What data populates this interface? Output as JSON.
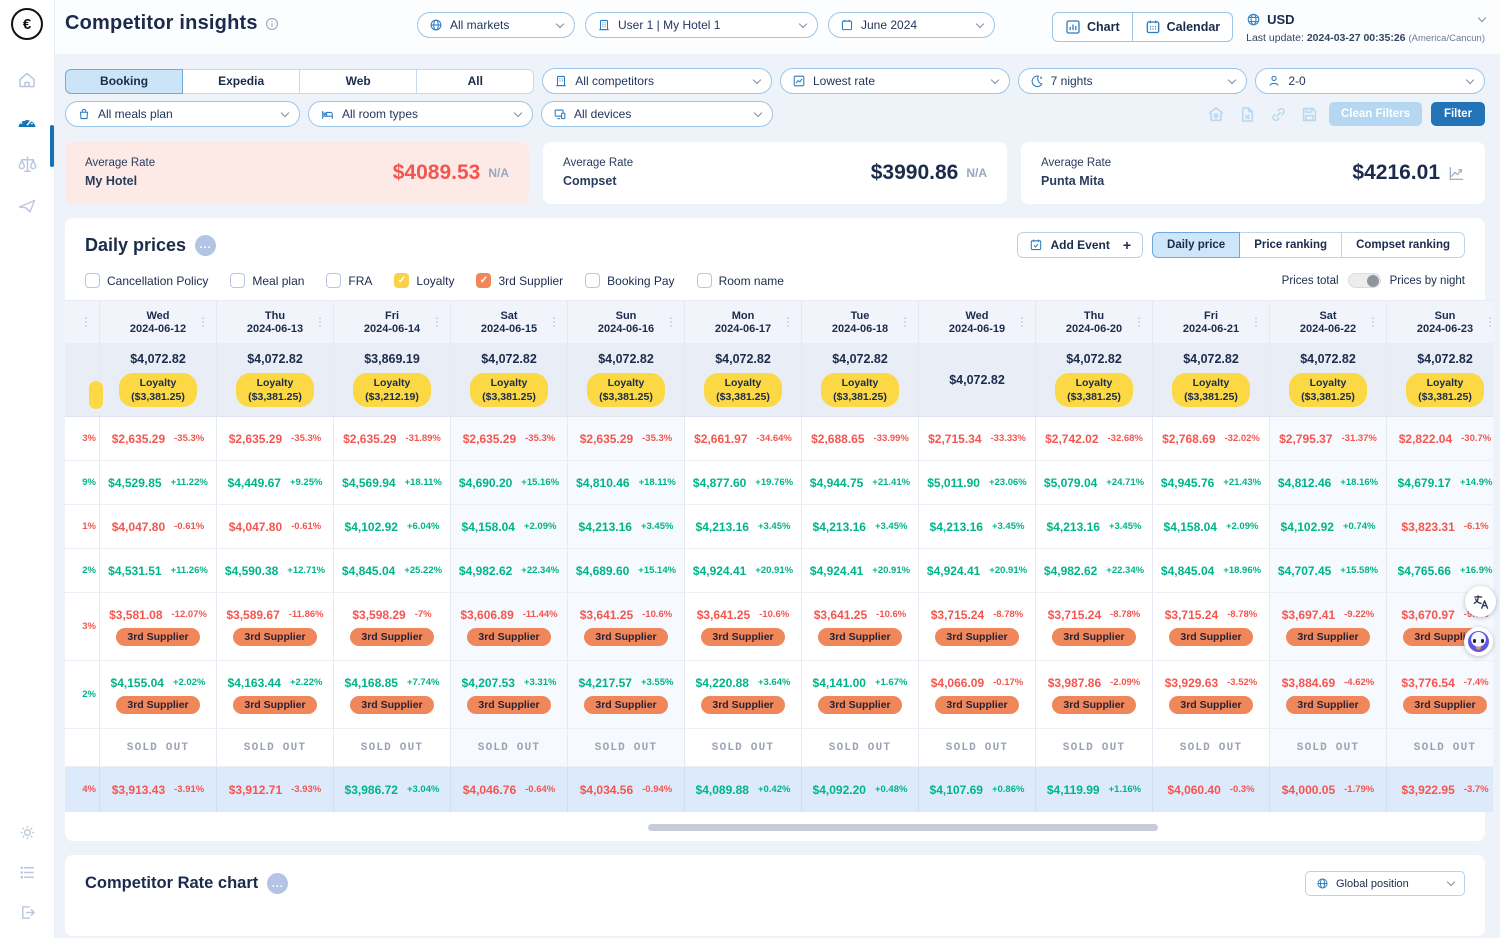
{
  "app": {
    "title": "Competitor insights",
    "currency": "USD",
    "last_update_label": "Last update:",
    "last_update_value": "2024-03-27 00:35:26",
    "last_update_timezone": "(America/Cancun)"
  },
  "header": {
    "markets": "All markets",
    "user_hotel": "User 1 | My Hotel 1",
    "month": "June 2024",
    "view_chart": "Chart",
    "view_calendar": "Calendar"
  },
  "filters": {
    "sources": [
      {
        "label": "Booking",
        "selected": true
      },
      {
        "label": "Expedia",
        "selected": false
      },
      {
        "label": "Web",
        "selected": false
      },
      {
        "label": "All",
        "selected": false
      }
    ],
    "competitors": "All competitors",
    "rate": "Lowest rate",
    "nights": "7 nights",
    "occupancy": "2-0",
    "meals": "All meals plan",
    "rooms": "All room types",
    "devices": "All devices",
    "clean_filters": "Clean Filters",
    "filter": "Filter"
  },
  "summary": [
    {
      "label": "Average Rate",
      "name": "My Hotel",
      "price": "$4089.53",
      "na": "N/A"
    },
    {
      "label": "Average Rate",
      "name": "Compset",
      "price": "$3990.86",
      "na": "N/A"
    },
    {
      "label": "Average Rate",
      "name": "Punta Mita",
      "price": "$4216.01"
    }
  ],
  "daily": {
    "title": "Daily prices",
    "add_event": "Add Event",
    "tabs": [
      {
        "label": "Daily price",
        "selected": true
      },
      {
        "label": "Price ranking",
        "selected": false
      },
      {
        "label": "Compset ranking",
        "selected": false
      }
    ],
    "checkboxes": [
      {
        "label": "Cancellation Policy",
        "checked": false,
        "color": null
      },
      {
        "label": "Meal plan",
        "checked": false,
        "color": null
      },
      {
        "label": "FRA",
        "checked": false,
        "color": null
      },
      {
        "label": "Loyalty",
        "checked": true,
        "color": "#f8d24b"
      },
      {
        "label": "3rd Supplier",
        "checked": true,
        "color": "#f0875a"
      },
      {
        "label": "Booking Pay",
        "checked": false,
        "color": null
      },
      {
        "label": "Room name",
        "checked": false,
        "color": null
      }
    ],
    "price_mode_left": "Prices total",
    "price_mode_right": "Prices by night"
  },
  "price_table": {
    "loyalty_label": "Loyalty",
    "columns": [
      {
        "day": "Wed",
        "date": "2024-06-12",
        "weekend": false
      },
      {
        "day": "Thu",
        "date": "2024-06-13",
        "weekend": false
      },
      {
        "day": "Fri",
        "date": "2024-06-14",
        "weekend": false
      },
      {
        "day": "Sat",
        "date": "2024-06-15",
        "weekend": true
      },
      {
        "day": "Sun",
        "date": "2024-06-16",
        "weekend": true
      },
      {
        "day": "Mon",
        "date": "2024-06-17",
        "weekend": false
      },
      {
        "day": "Tue",
        "date": "2024-06-18",
        "weekend": false
      },
      {
        "day": "Wed",
        "date": "2024-06-19",
        "weekend": false
      },
      {
        "day": "Thu",
        "date": "2024-06-20",
        "weekend": false
      },
      {
        "day": "Fri",
        "date": "2024-06-21",
        "weekend": false
      },
      {
        "day": "Sat",
        "date": "2024-06-22",
        "weekend": true
      },
      {
        "day": "Sun",
        "date": "2024-06-23",
        "weekend": true
      }
    ],
    "my_hotel": {
      "prices": [
        "$4,072.82",
        "$4,072.82",
        "$3,869.19",
        "$4,072.82",
        "$4,072.82",
        "$4,072.82",
        "$4,072.82",
        "$4,072.82",
        "$4,072.82",
        "$4,072.82",
        "$4,072.82",
        "$4,072.82"
      ],
      "loyalty": [
        "($3,381.25)",
        "($3,381.25)",
        "($3,212.19)",
        "($3,381.25)",
        "($3,381.25)",
        "($3,381.25)",
        "($3,381.25)",
        null,
        "($3,381.25)",
        "($3,381.25)",
        "($3,381.25)",
        "($3,381.25)"
      ]
    },
    "rows": [
      {
        "fragment": "3%",
        "fragment_neg": true,
        "badge": null,
        "cells": [
          [
            "$2,635.29",
            "-35.3%"
          ],
          [
            "$2,635.29",
            "-35.3%"
          ],
          [
            "$2,635.29",
            "-31.89%"
          ],
          [
            "$2,635.29",
            "-35.3%"
          ],
          [
            "$2,635.29",
            "-35.3%"
          ],
          [
            "$2,661.97",
            "-34.64%"
          ],
          [
            "$2,688.65",
            "-33.99%"
          ],
          [
            "$2,715.34",
            "-33.33%"
          ],
          [
            "$2,742.02",
            "-32.68%"
          ],
          [
            "$2,768.69",
            "-32.02%"
          ],
          [
            "$2,795.37",
            "-31.37%"
          ],
          [
            "$2,822.04",
            "-30.7%"
          ]
        ]
      },
      {
        "fragment": "9%",
        "fragment_neg": false,
        "badge": null,
        "cells": [
          [
            "$4,529.85",
            "+11.22%"
          ],
          [
            "$4,449.67",
            "+9.25%"
          ],
          [
            "$4,569.94",
            "+18.11%"
          ],
          [
            "$4,690.20",
            "+15.16%"
          ],
          [
            "$4,810.46",
            "+18.11%"
          ],
          [
            "$4,877.60",
            "+19.76%"
          ],
          [
            "$4,944.75",
            "+21.41%"
          ],
          [
            "$5,011.90",
            "+23.06%"
          ],
          [
            "$5,079.04",
            "+24.71%"
          ],
          [
            "$4,945.76",
            "+21.43%"
          ],
          [
            "$4,812.46",
            "+18.16%"
          ],
          [
            "$4,679.17",
            "+14.9%"
          ]
        ]
      },
      {
        "fragment": "1%",
        "fragment_neg": true,
        "badge": null,
        "cells": [
          [
            "$4,047.80",
            "-0.61%"
          ],
          [
            "$4,047.80",
            "-0.61%"
          ],
          [
            "$4,102.92",
            "+6.04%"
          ],
          [
            "$4,158.04",
            "+2.09%"
          ],
          [
            "$4,213.16",
            "+3.45%"
          ],
          [
            "$4,213.16",
            "+3.45%"
          ],
          [
            "$4,213.16",
            "+3.45%"
          ],
          [
            "$4,213.16",
            "+3.45%"
          ],
          [
            "$4,213.16",
            "+3.45%"
          ],
          [
            "$4,158.04",
            "+2.09%"
          ],
          [
            "$4,102.92",
            "+0.74%"
          ],
          [
            "$3,823.31",
            "-6.1%"
          ]
        ]
      },
      {
        "fragment": "2%",
        "fragment_neg": false,
        "badge": null,
        "cells": [
          [
            "$4,531.51",
            "+11.26%"
          ],
          [
            "$4,590.38",
            "+12.71%"
          ],
          [
            "$4,845.04",
            "+25.22%"
          ],
          [
            "$4,982.62",
            "+22.34%"
          ],
          [
            "$4,689.60",
            "+15.14%"
          ],
          [
            "$4,924.41",
            "+20.91%"
          ],
          [
            "$4,924.41",
            "+20.91%"
          ],
          [
            "$4,924.41",
            "+20.91%"
          ],
          [
            "$4,982.62",
            "+22.34%"
          ],
          [
            "$4,845.04",
            "+18.96%"
          ],
          [
            "$4,707.45",
            "+15.58%"
          ],
          [
            "$4,765.66",
            "+16.9%"
          ]
        ]
      },
      {
        "fragment": "3%",
        "fragment_neg": true,
        "badge": "3rd Supplier",
        "cells": [
          [
            "$3,581.08",
            "-12.07%"
          ],
          [
            "$3,589.67",
            "-11.86%"
          ],
          [
            "$3,598.29",
            "-7%"
          ],
          [
            "$3,606.89",
            "-11.44%"
          ],
          [
            "$3,641.25",
            "-10.6%"
          ],
          [
            "$3,641.25",
            "-10.6%"
          ],
          [
            "$3,641.25",
            "-10.6%"
          ],
          [
            "$3,715.24",
            "-8.78%"
          ],
          [
            "$3,715.24",
            "-8.78%"
          ],
          [
            "$3,715.24",
            "-8.78%"
          ],
          [
            "$3,697.41",
            "-9.22%"
          ],
          [
            "$3,670.97",
            "-9.9%"
          ]
        ]
      },
      {
        "fragment": "2%",
        "fragment_neg": false,
        "badge": "3rd Supplier",
        "cells": [
          [
            "$4,155.04",
            "+2.02%"
          ],
          [
            "$4,163.44",
            "+2.22%"
          ],
          [
            "$4,168.85",
            "+7.74%"
          ],
          [
            "$4,207.53",
            "+3.31%"
          ],
          [
            "$4,217.57",
            "+3.55%"
          ],
          [
            "$4,220.88",
            "+3.64%"
          ],
          [
            "$4,141.00",
            "+1.67%"
          ],
          [
            "$4,066.09",
            "-0.17%"
          ],
          [
            "$3,987.86",
            "-2.09%"
          ],
          [
            "$3,929.63",
            "-3.52%"
          ],
          [
            "$3,884.69",
            "-4.62%"
          ],
          [
            "$3,776.54",
            "-7.4%"
          ]
        ]
      }
    ],
    "sold_out": "SOLD OUT",
    "total_row": {
      "fragment": "4%",
      "fragment_neg": true,
      "cells": [
        [
          "$3,913.43",
          "-3.91%"
        ],
        [
          "$3,912.71",
          "-3.93%"
        ],
        [
          "$3,986.72",
          "+3.04%"
        ],
        [
          "$4,046.76",
          "-0.64%"
        ],
        [
          "$4,034.56",
          "-0.94%"
        ],
        [
          "$4,089.88",
          "+0.42%"
        ],
        [
          "$4,092.20",
          "+0.48%"
        ],
        [
          "$4,107.69",
          "+0.86%"
        ],
        [
          "$4,119.99",
          "+1.16%"
        ],
        [
          "$4,060.40",
          "-0.3%"
        ],
        [
          "$4,000.05",
          "-1.79%"
        ],
        [
          "$3,922.95",
          "-3.7%"
        ]
      ]
    }
  },
  "bottom": {
    "title": "Competitor Rate chart",
    "dropdown": "Global position"
  }
}
